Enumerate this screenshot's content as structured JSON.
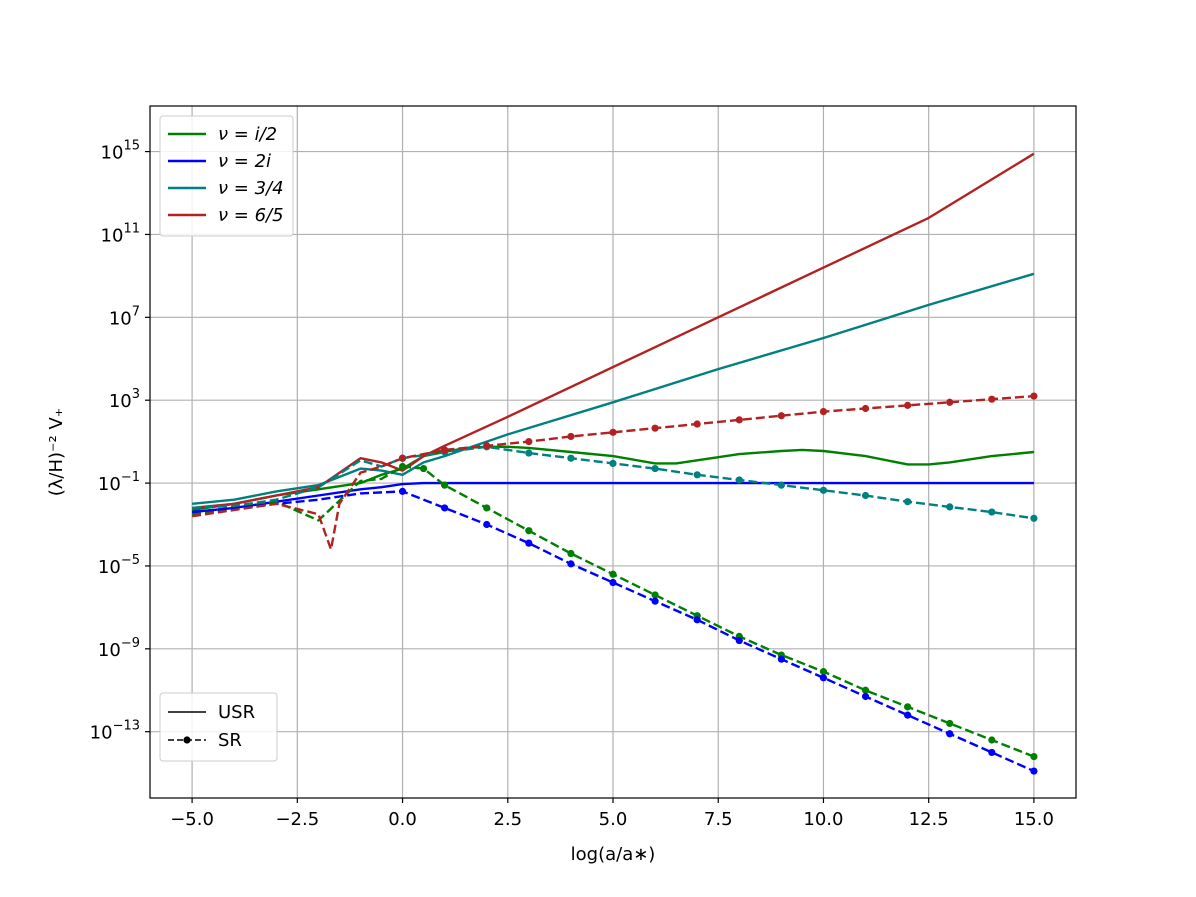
{
  "chart_data": {
    "type": "line",
    "title": "",
    "xlabel": "log(a/a∗)",
    "ylabel": "(λ/H)⁻² V₊",
    "yscale": "log",
    "xlim": [
      -6.0,
      16.0
    ],
    "ylim_exp": [
      -16.2,
      17.2
    ],
    "grid": true,
    "x_ticks": [
      {
        "v": -5.0,
        "label": "−5.0"
      },
      {
        "v": -2.5,
        "label": "−2.5"
      },
      {
        "v": 0.0,
        "label": "0.0"
      },
      {
        "v": 2.5,
        "label": "2.5"
      },
      {
        "v": 5.0,
        "label": "5.0"
      },
      {
        "v": 7.5,
        "label": "7.5"
      },
      {
        "v": 10.0,
        "label": "10.0"
      },
      {
        "v": 12.5,
        "label": "12.5"
      },
      {
        "v": 15.0,
        "label": "15.0"
      }
    ],
    "y_ticks": [
      {
        "e": 15,
        "base": "10",
        "exp": "15"
      },
      {
        "e": 11,
        "base": "10",
        "exp": "11"
      },
      {
        "e": 7,
        "base": "10",
        "exp": "7"
      },
      {
        "e": 3,
        "base": "10",
        "exp": "3"
      },
      {
        "e": -1,
        "base": "10",
        "exp": "−1"
      },
      {
        "e": -5,
        "base": "10",
        "exp": "−5"
      },
      {
        "e": -9,
        "base": "10",
        "exp": "−9"
      },
      {
        "e": -13,
        "base": "10",
        "exp": "−13"
      }
    ],
    "colors": {
      "green": "#008000",
      "blue": "#0000ff",
      "teal": "#008080",
      "red": "#b22222"
    },
    "legend_placement": "upper-left",
    "style_legend_placement": "lower-left",
    "legend": [
      {
        "name": "ν = i/2",
        "color": "#008000"
      },
      {
        "name": "ν = 2i",
        "color": "#0000ff"
      },
      {
        "name": "ν = 3/4",
        "color": "#008080"
      },
      {
        "name": "ν = 6/5",
        "color": "#b22222"
      }
    ],
    "style_legend": [
      {
        "name": "USR",
        "style": "solid"
      },
      {
        "name": "SR",
        "style": "dashed-dot"
      }
    ],
    "series": [
      {
        "legend": "ν = i/2",
        "style": "solid",
        "color": "#008000",
        "x": [
          -5,
          -4,
          -3,
          -2,
          -1,
          -0.5,
          0,
          0.5,
          1,
          1.5,
          2,
          2.5,
          3,
          4,
          5,
          6,
          6.5,
          7,
          8,
          9,
          9.5,
          10,
          11,
          12,
          12.5,
          13,
          14,
          15
        ],
        "log10y": [
          -2.3,
          -2.0,
          -1.6,
          -1.3,
          -1.0,
          -0.6,
          -0.3,
          0.3,
          0.5,
          0.7,
          0.75,
          0.75,
          0.7,
          0.5,
          0.3,
          -0.05,
          -0.05,
          0.1,
          0.4,
          0.55,
          0.6,
          0.55,
          0.3,
          -0.1,
          -0.1,
          0.0,
          0.3,
          0.5
        ]
      },
      {
        "legend": "ν = 2i",
        "style": "solid",
        "color": "#0000ff",
        "x": [
          -5,
          -4,
          -3,
          -2,
          -1,
          -0.5,
          0,
          0.5,
          1,
          2,
          3,
          5,
          7.5,
          10,
          12.5,
          15
        ],
        "log10y": [
          -2.4,
          -2.2,
          -1.9,
          -1.6,
          -1.3,
          -1.2,
          -1.05,
          -1.0,
          -1.0,
          -1.0,
          -1.0,
          -1.0,
          -1.0,
          -1.0,
          -1.0,
          -1.0
        ]
      },
      {
        "legend": "ν = 3/4",
        "style": "solid",
        "color": "#008080",
        "x": [
          -5,
          -4,
          -3,
          -2,
          -1,
          -0.5,
          0,
          0.5,
          1,
          2.5,
          5,
          7.5,
          10,
          12.5,
          15
        ],
        "log10y": [
          -2.0,
          -1.8,
          -1.4,
          -1.1,
          -0.3,
          -0.4,
          -0.6,
          0.0,
          0.3,
          1.35,
          2.9,
          4.5,
          6.0,
          7.6,
          9.1
        ]
      },
      {
        "legend": "ν = 6/5",
        "style": "solid",
        "color": "#b22222",
        "x": [
          -5,
          -4,
          -3,
          -2,
          -1,
          -0.5,
          0,
          0.5,
          1,
          2.5,
          5,
          7.5,
          10,
          12.5,
          15
        ],
        "log10y": [
          -2.2,
          -2.0,
          -1.6,
          -1.2,
          0.2,
          0.0,
          -0.4,
          0.3,
          0.8,
          2.2,
          4.6,
          7.0,
          9.4,
          11.8,
          14.9
        ]
      },
      {
        "legend": "ν = i/2",
        "style": "dashed",
        "color": "#008000",
        "x": [
          -5,
          -4,
          -3,
          -2,
          -1,
          -0.5,
          0,
          0.5,
          1,
          2,
          3,
          4,
          5,
          6,
          7,
          8,
          9,
          10,
          11,
          12,
          13,
          14,
          15
        ],
        "log10y": [
          -2.5,
          -2.2,
          -1.9,
          -2.8,
          -0.9,
          -0.8,
          -0.2,
          -0.3,
          -1.1,
          -2.2,
          -3.3,
          -4.4,
          -5.4,
          -6.4,
          -7.4,
          -8.4,
          -9.3,
          -10.1,
          -11.0,
          -11.8,
          -12.6,
          -13.4,
          -14.2
        ]
      },
      {
        "legend": "ν = 2i",
        "style": "dashed",
        "color": "#0000ff",
        "x": [
          -5,
          -4,
          -3,
          -2,
          -1,
          0,
          1,
          2,
          3,
          4,
          5,
          6,
          7,
          8,
          9,
          10,
          11,
          12,
          13,
          14,
          15
        ],
        "log10y": [
          -2.4,
          -2.2,
          -2.0,
          -1.8,
          -1.5,
          -1.4,
          -2.2,
          -3.0,
          -3.9,
          -4.9,
          -5.8,
          -6.7,
          -7.6,
          -8.6,
          -9.5,
          -10.4,
          -11.3,
          -12.2,
          -13.1,
          -14.0,
          -14.9
        ]
      },
      {
        "legend": "ν = 3/4",
        "style": "dashed",
        "color": "#008080",
        "x": [
          -5,
          -4,
          -3,
          -2,
          -1,
          -0.5,
          0,
          1,
          2,
          3,
          4,
          5,
          6,
          7,
          8,
          9,
          10,
          11,
          12,
          13,
          14,
          15
        ],
        "log10y": [
          -2.2,
          -2.1,
          -1.8,
          -1.2,
          0.1,
          -0.2,
          0.2,
          0.5,
          0.75,
          0.45,
          0.2,
          -0.05,
          -0.3,
          -0.6,
          -0.85,
          -1.1,
          -1.35,
          -1.6,
          -1.9,
          -2.15,
          -2.4,
          -2.7
        ]
      },
      {
        "legend": "ν = 6/5",
        "style": "dashed",
        "color": "#b22222",
        "x": [
          -5,
          -4,
          -3,
          -2,
          -1.7,
          -1.5,
          -1,
          -0.5,
          0,
          1,
          2,
          3,
          4,
          5,
          6,
          7,
          8,
          9,
          10,
          11,
          12,
          13,
          14,
          15
        ],
        "log10y": [
          -2.6,
          -2.3,
          -2.0,
          -2.5,
          -4.2,
          -2.0,
          -0.5,
          -0.2,
          0.2,
          0.6,
          0.8,
          1.0,
          1.25,
          1.45,
          1.65,
          1.85,
          2.05,
          2.25,
          2.45,
          2.6,
          2.75,
          2.9,
          3.05,
          3.2
        ]
      }
    ]
  }
}
